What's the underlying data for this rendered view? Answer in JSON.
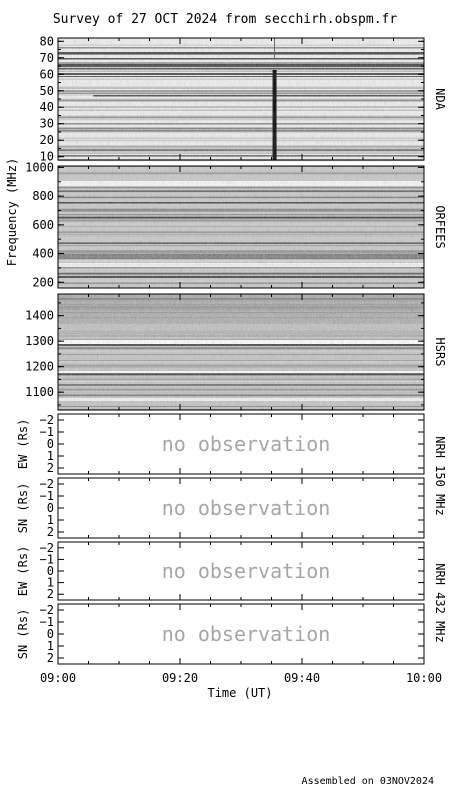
{
  "title": "Survey of 27 OCT 2024 from secchirh.obspm.fr",
  "footer": "Assembled on 03NOV2024",
  "x_axis": {
    "label": "Time (UT)",
    "ticks": [
      "09:00",
      "09:20",
      "09:40",
      "10:00"
    ],
    "range_minutes": [
      0,
      60
    ]
  },
  "y_axis_label": "Frequency (MHz)",
  "no_observation_text": "no observation",
  "chart_data": [
    {
      "type": "heatmap",
      "name": "NDA",
      "ylim": [
        82,
        8
      ],
      "yticks": [
        10,
        20,
        30,
        40,
        50,
        60,
        70,
        80
      ],
      "burst_time_minutes": 35.5
    },
    {
      "type": "heatmap",
      "name": "ORFEES",
      "ylim": [
        1010,
        160
      ],
      "yticks": [
        200,
        400,
        600,
        800,
        1000
      ]
    },
    {
      "type": "heatmap",
      "name": "HSRS",
      "ylim": [
        1485,
        1030
      ],
      "yticks": [
        1100,
        1200,
        1300,
        1400
      ]
    },
    {
      "type": "line",
      "name": "NRH 150 MHz",
      "ylabel": "EW (Rs)",
      "ylim": [
        -2.5,
        2.5
      ],
      "yticks": [
        2,
        1,
        0,
        -1,
        -2
      ],
      "ytick_labels": [
        "2",
        "1",
        "0",
        "−1",
        "−2"
      ],
      "observation": "no observation"
    },
    {
      "type": "line",
      "name": "NRH 150 MHz",
      "ylabel": "SN (Rs)",
      "ylim": [
        -2.5,
        2.5
      ],
      "yticks": [
        2,
        1,
        0,
        -1,
        -2
      ],
      "ytick_labels": [
        "2",
        "1",
        "0",
        "−1",
        "−2"
      ],
      "observation": "no observation"
    },
    {
      "type": "line",
      "name": "NRH 432 MHz",
      "ylabel": "EW (Rs)",
      "ylim": [
        -2.5,
        2.5
      ],
      "yticks": [
        2,
        1,
        0,
        -1,
        -2
      ],
      "ytick_labels": [
        "2",
        "1",
        "0",
        "−1",
        "−2"
      ],
      "observation": "no observation"
    },
    {
      "type": "line",
      "name": "NRH 432 MHz",
      "ylabel": "SN (Rs)",
      "ylim": [
        -2.5,
        2.5
      ],
      "yticks": [
        2,
        1,
        0,
        -1,
        -2
      ],
      "ytick_labels": [
        "2",
        "1",
        "0",
        "−1",
        "−2"
      ],
      "observation": "no observation"
    }
  ]
}
